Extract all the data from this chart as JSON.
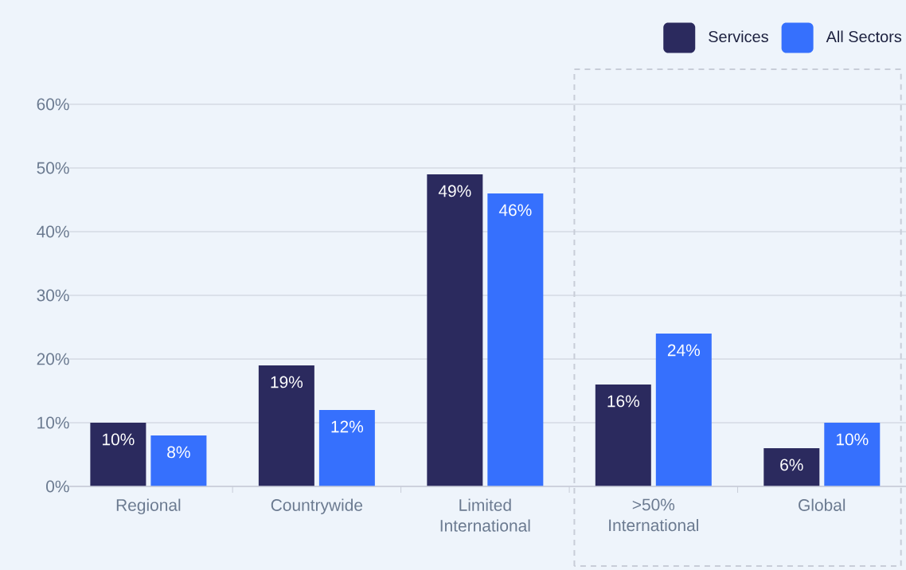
{
  "chart_data": {
    "type": "bar",
    "categories": [
      "Regional",
      "Countrywide",
      "Limited International",
      ">50% International",
      "Global"
    ],
    "series": [
      {
        "name": "Services",
        "color": "#2b2a5e",
        "values": [
          10,
          19,
          49,
          16,
          6
        ],
        "value_labels": [
          "10%",
          "19%",
          "49%",
          "16%",
          "6%"
        ]
      },
      {
        "name": "All Sectors",
        "color": "#3670fd",
        "values": [
          8,
          12,
          46,
          24,
          10
        ],
        "value_labels": [
          "8%",
          "12%",
          "46%",
          "24%",
          "10%"
        ]
      }
    ],
    "ylim": [
      0,
      60
    ],
    "yticks": [
      {
        "value": 0,
        "label": "0%"
      },
      {
        "value": 10,
        "label": "10%"
      },
      {
        "value": 20,
        "label": "20%"
      },
      {
        "value": 30,
        "label": "30%"
      },
      {
        "value": 40,
        "label": "40%"
      },
      {
        "value": 50,
        "label": "50%"
      },
      {
        "value": 60,
        "label": "60%"
      }
    ],
    "grid": "y",
    "legend": "top right"
  }
}
